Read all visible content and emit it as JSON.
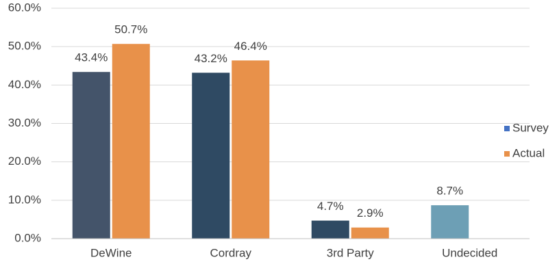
{
  "chart_data": {
    "type": "bar",
    "categories": [
      "DeWine",
      "Cordray",
      "3rd Party",
      "Undecided"
    ],
    "series": [
      {
        "name": "Survey",
        "color": "#4472c4",
        "bar_colors": [
          "#44546a",
          "#2f4a63",
          "#2f4a63",
          "#6d9fb5"
        ],
        "values": [
          43.4,
          43.2,
          4.7,
          8.7
        ],
        "value_labels": [
          "43.4%",
          "43.2%",
          "4.7%",
          "8.7%"
        ]
      },
      {
        "name": "Actual",
        "color": "#e8914a",
        "values": [
          50.7,
          46.4,
          2.9,
          null
        ],
        "value_labels": [
          "50.7%",
          "46.4%",
          "2.9%",
          null
        ]
      }
    ],
    "ylim": [
      0,
      60
    ],
    "yticks": [
      {
        "value": 0,
        "label": "0.0%"
      },
      {
        "value": 10,
        "label": "10.0%"
      },
      {
        "value": 20,
        "label": "20.0%"
      },
      {
        "value": 30,
        "label": "30.0%"
      },
      {
        "value": 40,
        "label": "40.0%"
      },
      {
        "value": 50,
        "label": "50.0%"
      },
      {
        "value": 60,
        "label": "60.0%"
      }
    ],
    "grid": true,
    "legend": "right"
  }
}
